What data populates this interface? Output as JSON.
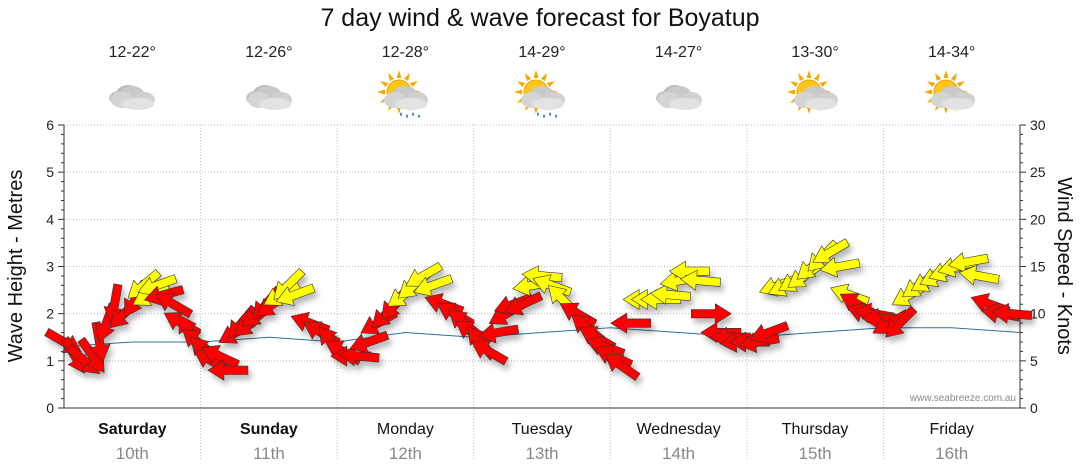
{
  "title": "7 day wind & wave forecast for Boyatup",
  "watermark": "www.seabreeze.com.au",
  "days": [
    {
      "name": "Saturday",
      "date": "10th",
      "temp": "12-22°",
      "icon": "cloudy-icon",
      "bold": true
    },
    {
      "name": "Sunday",
      "date": "11th",
      "temp": "12-26°",
      "icon": "cloudy-icon",
      "bold": true
    },
    {
      "name": "Monday",
      "date": "12th",
      "temp": "12-28°",
      "icon": "sun-cloud-rain-icon",
      "bold": false
    },
    {
      "name": "Tuesday",
      "date": "13th",
      "temp": "14-29°",
      "icon": "sun-cloud-rain-icon",
      "bold": false
    },
    {
      "name": "Wednesday",
      "date": "14th",
      "temp": "14-27°",
      "icon": "cloudy-icon",
      "bold": false
    },
    {
      "name": "Thursday",
      "date": "15th",
      "temp": "13-30°",
      "icon": "sun-cloud-icon",
      "bold": false
    },
    {
      "name": "Friday",
      "date": "16th",
      "temp": "14-34°",
      "icon": "sun-cloud-icon",
      "bold": false
    }
  ],
  "colors": {
    "wave_line": "#2f6f9f",
    "arrow_high": "#ffff00",
    "arrow_low": "#ff0000",
    "arrow_outline": "#333333",
    "grid": "#bbbbbb"
  },
  "chart_data": {
    "type": "line",
    "title": "7 day wind & wave forecast for Boyatup",
    "ylabel_left": "Wave Height - Metres",
    "ylabel_right": "Wind Speed - Knots",
    "ylim_left": [
      0,
      6
    ],
    "ylim_right": [
      0,
      30
    ],
    "yticks_left": [
      0,
      1,
      2,
      3,
      4,
      5,
      6
    ],
    "yticks_right": [
      0,
      5,
      10,
      15,
      20,
      25,
      30
    ],
    "grid": true,
    "x_unit": "days from start of Saturday 10th",
    "series": [
      {
        "name": "Wind",
        "points": [
          {
            "x": 0.0,
            "speed": 7,
            "dir": 300,
            "color": "red"
          },
          {
            "x": 0.08,
            "speed": 5.5,
            "dir": 330,
            "color": "red"
          },
          {
            "x": 0.15,
            "speed": 5,
            "dir": 310,
            "color": "red"
          },
          {
            "x": 0.21,
            "speed": 5.5,
            "dir": 325,
            "color": "red"
          },
          {
            "x": 0.26,
            "speed": 7,
            "dir": 350,
            "color": "red"
          },
          {
            "x": 0.31,
            "speed": 9,
            "dir": 20,
            "color": "red"
          },
          {
            "x": 0.37,
            "speed": 11,
            "dir": 10,
            "color": "red"
          },
          {
            "x": 0.44,
            "speed": 10,
            "dir": 45,
            "color": "red"
          },
          {
            "x": 0.52,
            "speed": 11.5,
            "dir": 30,
            "color": "red"
          },
          {
            "x": 0.58,
            "speed": 13,
            "dir": 50,
            "color": "yellow"
          },
          {
            "x": 0.63,
            "speed": 12,
            "dir": 60,
            "color": "yellow"
          },
          {
            "x": 0.68,
            "speed": 13,
            "dir": 70,
            "color": "yellow"
          },
          {
            "x": 0.73,
            "speed": 12,
            "dir": 75,
            "color": "red"
          },
          {
            "x": 0.8,
            "speed": 11,
            "dir": 120,
            "color": "red"
          },
          {
            "x": 0.86,
            "speed": 9,
            "dir": 120,
            "color": "red"
          },
          {
            "x": 0.92,
            "speed": 8,
            "dir": 150,
            "color": "red"
          },
          {
            "x": 0.98,
            "speed": 7,
            "dir": 130,
            "color": "red"
          },
          {
            "x": 1.03,
            "speed": 6,
            "dir": 135,
            "color": "red"
          },
          {
            "x": 1.08,
            "speed": 5,
            "dir": 120,
            "color": "red"
          },
          {
            "x": 1.14,
            "speed": 5.5,
            "dir": 115,
            "color": "red"
          },
          {
            "x": 1.2,
            "speed": 4,
            "dir": 90,
            "color": "red"
          },
          {
            "x": 1.26,
            "speed": 8,
            "dir": 60,
            "color": "red"
          },
          {
            "x": 1.3,
            "speed": 9,
            "dir": 40,
            "color": "red"
          },
          {
            "x": 1.36,
            "speed": 9,
            "dir": 50,
            "color": "red"
          },
          {
            "x": 1.42,
            "speed": 10,
            "dir": 50,
            "color": "red"
          },
          {
            "x": 1.48,
            "speed": 11,
            "dir": 40,
            "color": "red"
          },
          {
            "x": 1.53,
            "speed": 11,
            "dir": 55,
            "color": "red"
          },
          {
            "x": 1.59,
            "speed": 12,
            "dir": 60,
            "color": "yellow"
          },
          {
            "x": 1.64,
            "speed": 13,
            "dir": 45,
            "color": "yellow"
          },
          {
            "x": 1.69,
            "speed": 12,
            "dir": 70,
            "color": "yellow"
          },
          {
            "x": 1.8,
            "speed": 9,
            "dir": 110,
            "color": "red"
          },
          {
            "x": 1.88,
            "speed": 8,
            "dir": 120,
            "color": "red"
          },
          {
            "x": 1.96,
            "speed": 7,
            "dir": 140,
            "color": "red"
          },
          {
            "x": 2.04,
            "speed": 6,
            "dir": 120,
            "color": "red"
          },
          {
            "x": 2.1,
            "speed": 5.5,
            "dir": 90,
            "color": "red"
          },
          {
            "x": 2.16,
            "speed": 5.5,
            "dir": 95,
            "color": "red"
          },
          {
            "x": 2.23,
            "speed": 7,
            "dir": 70,
            "color": "red"
          },
          {
            "x": 2.3,
            "speed": 9,
            "dir": 60,
            "color": "red"
          },
          {
            "x": 2.36,
            "speed": 10,
            "dir": 45,
            "color": "red"
          },
          {
            "x": 2.42,
            "speed": 11,
            "dir": 40,
            "color": "red"
          },
          {
            "x": 2.49,
            "speed": 12,
            "dir": 55,
            "color": "yellow"
          },
          {
            "x": 2.56,
            "speed": 13,
            "dir": 50,
            "color": "yellow"
          },
          {
            "x": 2.63,
            "speed": 14,
            "dir": 60,
            "color": "yellow"
          },
          {
            "x": 2.7,
            "speed": 13,
            "dir": 70,
            "color": "yellow"
          },
          {
            "x": 2.78,
            "speed": 11,
            "dir": 110,
            "color": "red"
          },
          {
            "x": 2.86,
            "speed": 10,
            "dir": 120,
            "color": "red"
          },
          {
            "x": 2.93,
            "speed": 9,
            "dir": 130,
            "color": "red"
          },
          {
            "x": 2.99,
            "speed": 8,
            "dir": 125,
            "color": "red"
          },
          {
            "x": 3.05,
            "speed": 7,
            "dir": 140,
            "color": "red"
          },
          {
            "x": 3.11,
            "speed": 6,
            "dir": 120,
            "color": "red"
          },
          {
            "x": 3.18,
            "speed": 8,
            "dir": 80,
            "color": "red"
          },
          {
            "x": 3.24,
            "speed": 10,
            "dir": 60,
            "color": "red"
          },
          {
            "x": 3.29,
            "speed": 11,
            "dir": 70,
            "color": "red"
          },
          {
            "x": 3.36,
            "speed": 11,
            "dir": 65,
            "color": "red"
          },
          {
            "x": 3.43,
            "speed": 13,
            "dir": 80,
            "color": "yellow"
          },
          {
            "x": 3.5,
            "speed": 14,
            "dir": 95,
            "color": "yellow"
          },
          {
            "x": 3.57,
            "speed": 13,
            "dir": 110,
            "color": "yellow"
          },
          {
            "x": 3.65,
            "speed": 11.5,
            "dir": 135,
            "color": "yellow"
          },
          {
            "x": 3.76,
            "speed": 10,
            "dir": 120,
            "color": "red"
          },
          {
            "x": 3.83,
            "speed": 8.5,
            "dir": 130,
            "color": "red"
          },
          {
            "x": 3.9,
            "speed": 7.5,
            "dir": 120,
            "color": "red"
          },
          {
            "x": 3.96,
            "speed": 6.5,
            "dir": 110,
            "color": "red"
          },
          {
            "x": 4.02,
            "speed": 5.5,
            "dir": 115,
            "color": "red"
          },
          {
            "x": 4.08,
            "speed": 4.5,
            "dir": 125,
            "color": "red"
          },
          {
            "x": 4.15,
            "speed": 9,
            "dir": 90,
            "color": "red"
          },
          {
            "x": 4.24,
            "speed": 11.5,
            "dir": 90,
            "color": "yellow"
          },
          {
            "x": 4.3,
            "speed": 11.5,
            "dir": 90,
            "color": "yellow"
          },
          {
            "x": 4.37,
            "speed": 11.5,
            "dir": 90,
            "color": "yellow"
          },
          {
            "x": 4.44,
            "speed": 12,
            "dir": 95,
            "color": "yellow"
          },
          {
            "x": 4.51,
            "speed": 13.5,
            "dir": 80,
            "color": "yellow"
          },
          {
            "x": 4.58,
            "speed": 14.5,
            "dir": 90,
            "color": "yellow"
          },
          {
            "x": 4.66,
            "speed": 13.5,
            "dir": 95,
            "color": "yellow"
          },
          {
            "x": 4.74,
            "speed": 10,
            "dir": 270,
            "color": "red"
          },
          {
            "x": 4.81,
            "speed": 8,
            "dir": 90,
            "color": "red"
          },
          {
            "x": 4.88,
            "speed": 7.5,
            "dir": 90,
            "color": "red"
          },
          {
            "x": 4.95,
            "speed": 7,
            "dir": 85,
            "color": "red"
          },
          {
            "x": 5.02,
            "speed": 7,
            "dir": 90,
            "color": "red"
          },
          {
            "x": 5.09,
            "speed": 7,
            "dir": 80,
            "color": "red"
          },
          {
            "x": 5.16,
            "speed": 8,
            "dir": 70,
            "color": "red"
          },
          {
            "x": 5.23,
            "speed": 13,
            "dir": 70,
            "color": "yellow"
          },
          {
            "x": 5.29,
            "speed": 13,
            "dir": 65,
            "color": "yellow"
          },
          {
            "x": 5.36,
            "speed": 13.5,
            "dir": 60,
            "color": "yellow"
          },
          {
            "x": 5.42,
            "speed": 14,
            "dir": 55,
            "color": "yellow"
          },
          {
            "x": 5.48,
            "speed": 15,
            "dir": 50,
            "color": "yellow"
          },
          {
            "x": 5.55,
            "speed": 16,
            "dir": 45,
            "color": "yellow"
          },
          {
            "x": 5.61,
            "speed": 16.5,
            "dir": 60,
            "color": "yellow"
          },
          {
            "x": 5.68,
            "speed": 15,
            "dir": 80,
            "color": "yellow"
          },
          {
            "x": 5.75,
            "speed": 12,
            "dir": 110,
            "color": "yellow"
          },
          {
            "x": 5.81,
            "speed": 11,
            "dir": 120,
            "color": "red"
          },
          {
            "x": 5.87,
            "speed": 10,
            "dir": 110,
            "color": "red"
          },
          {
            "x": 5.93,
            "speed": 10,
            "dir": 100,
            "color": "red"
          },
          {
            "x": 5.99,
            "speed": 9.5,
            "dir": 90,
            "color": "red"
          },
          {
            "x": 6.05,
            "speed": 9,
            "dir": 60,
            "color": "red"
          },
          {
            "x": 6.12,
            "speed": 9,
            "dir": 45,
            "color": "red"
          },
          {
            "x": 6.19,
            "speed": 12,
            "dir": 60,
            "color": "yellow"
          },
          {
            "x": 6.26,
            "speed": 13,
            "dir": 55,
            "color": "yellow"
          },
          {
            "x": 6.33,
            "speed": 13.5,
            "dir": 60,
            "color": "yellow"
          },
          {
            "x": 6.4,
            "speed": 14,
            "dir": 65,
            "color": "yellow"
          },
          {
            "x": 6.47,
            "speed": 14.5,
            "dir": 70,
            "color": "yellow"
          },
          {
            "x": 6.54,
            "speed": 15,
            "dir": 75,
            "color": "yellow"
          },
          {
            "x": 6.62,
            "speed": 15.5,
            "dir": 80,
            "color": "yellow"
          },
          {
            "x": 6.7,
            "speed": 14,
            "dir": 100,
            "color": "yellow"
          },
          {
            "x": 6.78,
            "speed": 11,
            "dir": 110,
            "color": "red"
          },
          {
            "x": 6.86,
            "speed": 10,
            "dir": 100,
            "color": "red"
          },
          {
            "x": 6.94,
            "speed": 10,
            "dir": 95,
            "color": "red"
          }
        ]
      },
      {
        "name": "Wave height",
        "points": [
          [
            0.0,
            1.3
          ],
          [
            0.5,
            1.4
          ],
          [
            1.0,
            1.4
          ],
          [
            1.5,
            1.5
          ],
          [
            2.0,
            1.4
          ],
          [
            2.5,
            1.6
          ],
          [
            3.0,
            1.5
          ],
          [
            3.5,
            1.6
          ],
          [
            4.0,
            1.7
          ],
          [
            4.5,
            1.6
          ],
          [
            5.0,
            1.5
          ],
          [
            5.5,
            1.6
          ],
          [
            6.0,
            1.7
          ],
          [
            6.5,
            1.7
          ],
          [
            7.0,
            1.6
          ]
        ]
      }
    ]
  }
}
